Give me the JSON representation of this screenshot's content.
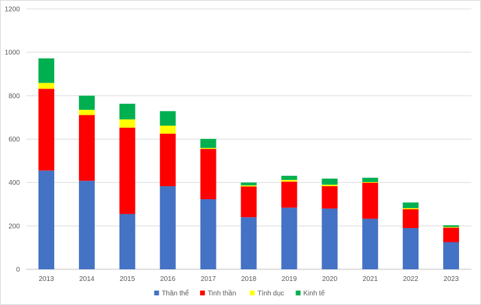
{
  "chart_data": {
    "type": "bar",
    "stacked": true,
    "categories": [
      "2013",
      "2014",
      "2015",
      "2016",
      "2017",
      "2018",
      "2019",
      "2020",
      "2021",
      "2022",
      "2023"
    ],
    "series": [
      {
        "name": "Thân thể",
        "color": "#4472c4",
        "values": [
          455,
          408,
          255,
          383,
          323,
          240,
          284,
          280,
          233,
          190,
          125
        ]
      },
      {
        "name": "Tinh thần",
        "color": "#ff0000",
        "values": [
          377,
          303,
          398,
          242,
          232,
          142,
          120,
          103,
          166,
          87,
          67
        ]
      },
      {
        "name": "Tình dục",
        "color": "#ffff00",
        "values": [
          27,
          24,
          38,
          37,
          4,
          5,
          8,
          7,
          3,
          5,
          3
        ]
      },
      {
        "name": "Kinh tế",
        "color": "#00b050",
        "values": [
          113,
          65,
          72,
          67,
          42,
          13,
          19,
          28,
          20,
          26,
          8
        ]
      }
    ],
    "ylim": [
      0,
      1200
    ],
    "yticks": [
      0,
      200,
      400,
      600,
      800,
      1000,
      1200
    ],
    "title": "",
    "xlabel": "",
    "ylabel": "",
    "grid": "horizontal",
    "legend": "bottom"
  }
}
